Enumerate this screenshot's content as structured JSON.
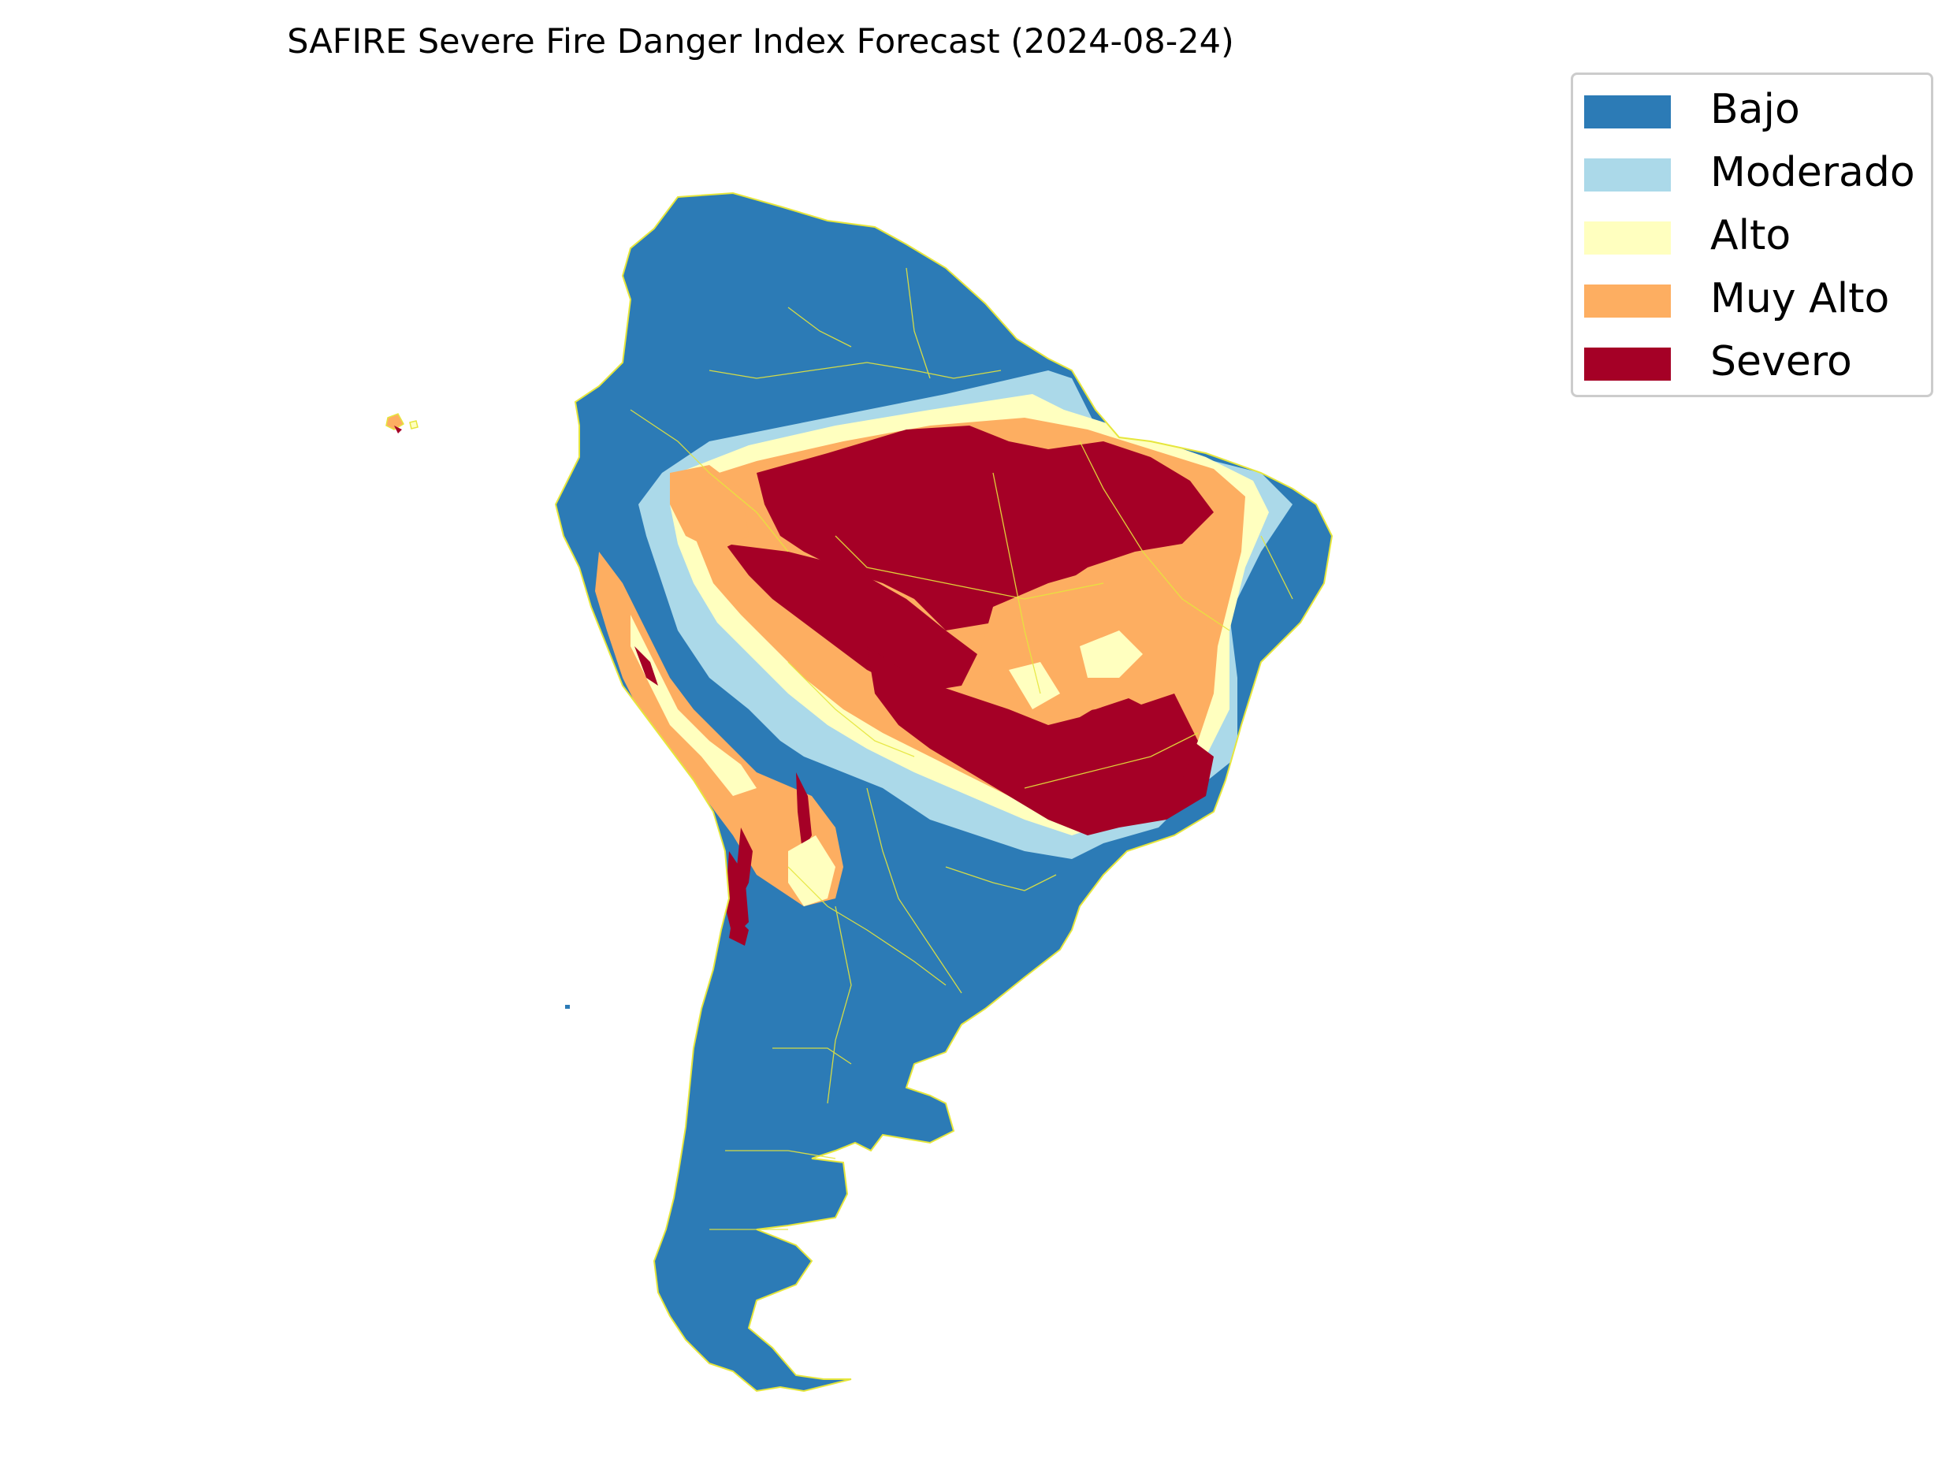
{
  "title": "SAFIRE Severe Fire Danger Index Forecast (2024-08-24)",
  "legend": [
    {
      "label": "Bajo",
      "color": "#2c7bb6"
    },
    {
      "label": "Moderado",
      "color": "#abd9e9"
    },
    {
      "label": "Alto",
      "color": "#ffffbf"
    },
    {
      "label": "Muy Alto",
      "color": "#fdae61"
    },
    {
      "label": "Severo",
      "color": "#a50026"
    }
  ],
  "map": {
    "region": "South America",
    "boundary_color": "#e6e63c"
  }
}
